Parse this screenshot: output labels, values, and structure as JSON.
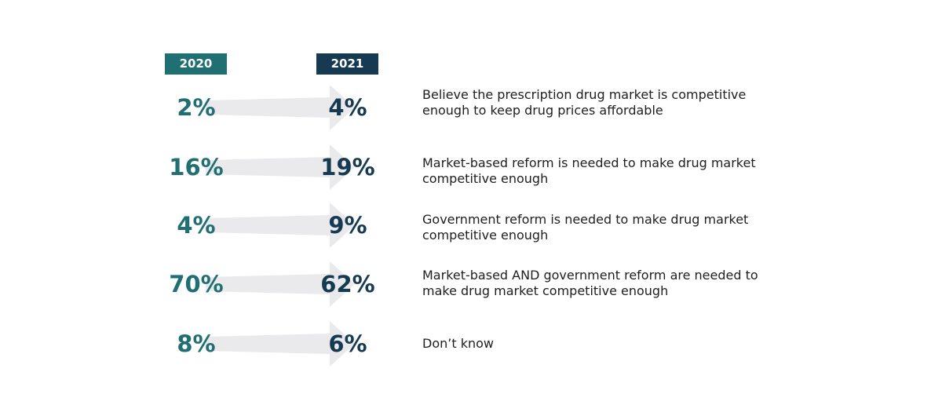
{
  "chart_data": {
    "type": "table",
    "years": [
      "2020",
      "2021"
    ],
    "rows": [
      {
        "label_2020": "2%",
        "label_2021": "4%",
        "value_2020": 2,
        "value_2021": 4,
        "description": "Believe the prescription drug market is competitive enough to keep drug prices affordable",
        "description_lines": [
          "Believe the prescription drug market is competitive",
          "enough to keep drug prices affordable"
        ]
      },
      {
        "label_2020": "16%",
        "label_2021": "19%",
        "value_2020": 16,
        "value_2021": 19,
        "description": "Market-based reform is needed to make drug market competitive enough",
        "description_lines": [
          "Market-based reform is needed to make drug market",
          "competitive enough"
        ]
      },
      {
        "label_2020": "4%",
        "label_2021": "9%",
        "value_2020": 4,
        "value_2021": 9,
        "description": "Government reform is needed to make drug market competitive enough",
        "description_lines": [
          "Government reform is needed to make drug market",
          "competitive enough"
        ]
      },
      {
        "label_2020": "70%",
        "label_2021": "62%",
        "value_2020": 70,
        "value_2021": 62,
        "description": "Market-based AND government reform are needed to make drug market competitive enough",
        "description_lines": [
          "Market-based AND government reform are needed to",
          "make drug market competitive enough"
        ]
      },
      {
        "label_2020": "8%",
        "label_2021": "6%",
        "value_2020": 8,
        "value_2021": 6,
        "description": "Don’t know",
        "description_lines": [
          "Don’t know"
        ]
      }
    ]
  },
  "colors": {
    "year_2020": "#1f6f73",
    "year_2021": "#163a52",
    "arrow": "#eaeaec",
    "text": "#1e1e1e"
  }
}
